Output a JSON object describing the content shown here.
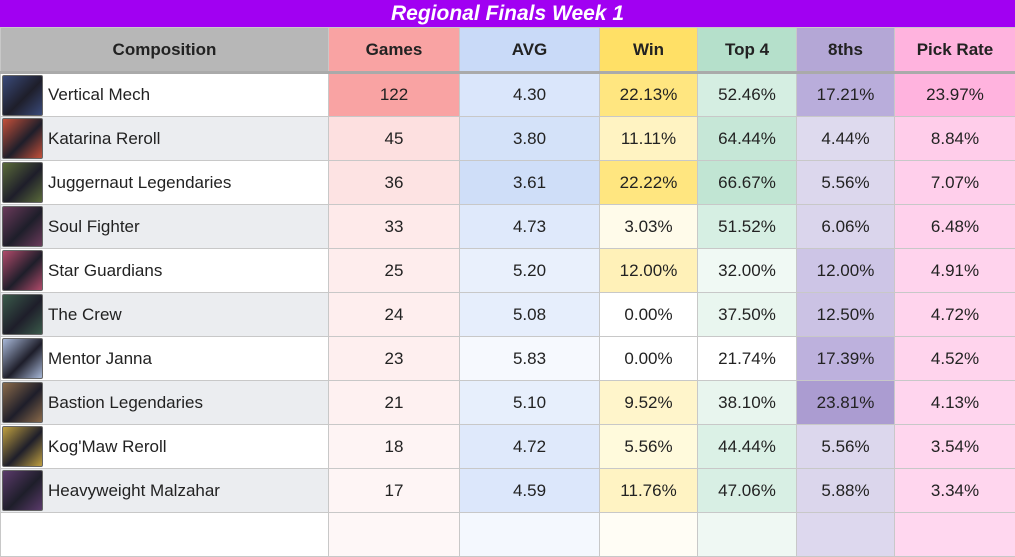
{
  "title": "Regional Finals Week 1",
  "columns": {
    "composition": "Composition",
    "games": "Games",
    "avg": "AVG",
    "win": "Win",
    "top4": "Top 4",
    "eighths": "8ths",
    "pick_rate": "Pick Rate"
  },
  "rows": [
    {
      "name": "Vertical Mech",
      "icon": "champion-portrait-icon",
      "games": "122",
      "avg": "4.30",
      "win": "22.13%",
      "top4": "52.46%",
      "eighths": "17.21%",
      "pick_rate": "23.97%"
    },
    {
      "name": "Katarina Reroll",
      "icon": "champion-portrait-icon",
      "games": "45",
      "avg": "3.80",
      "win": "11.11%",
      "top4": "64.44%",
      "eighths": "4.44%",
      "pick_rate": "8.84%"
    },
    {
      "name": "Juggernaut Legendaries",
      "icon": "champion-portrait-icon",
      "games": "36",
      "avg": "3.61",
      "win": "22.22%",
      "top4": "66.67%",
      "eighths": "5.56%",
      "pick_rate": "7.07%"
    },
    {
      "name": "Soul Fighter",
      "icon": "champion-portrait-icon",
      "games": "33",
      "avg": "4.73",
      "win": "3.03%",
      "top4": "51.52%",
      "eighths": "6.06%",
      "pick_rate": "6.48%"
    },
    {
      "name": "Star Guardians",
      "icon": "champion-portrait-icon",
      "games": "25",
      "avg": "5.20",
      "win": "12.00%",
      "top4": "32.00%",
      "eighths": "12.00%",
      "pick_rate": "4.91%"
    },
    {
      "name": "The Crew",
      "icon": "champion-portrait-icon",
      "games": "24",
      "avg": "5.08",
      "win": "0.00%",
      "top4": "37.50%",
      "eighths": "12.50%",
      "pick_rate": "4.72%"
    },
    {
      "name": "Mentor Janna",
      "icon": "champion-portrait-icon",
      "games": "23",
      "avg": "5.83",
      "win": "0.00%",
      "top4": "21.74%",
      "eighths": "17.39%",
      "pick_rate": "4.52%"
    },
    {
      "name": "Bastion Legendaries",
      "icon": "champion-portrait-icon",
      "games": "21",
      "avg": "5.10",
      "win": "9.52%",
      "top4": "38.10%",
      "eighths": "23.81%",
      "pick_rate": "4.13%"
    },
    {
      "name": "Kog'Maw Reroll",
      "icon": "champion-portrait-icon",
      "games": "18",
      "avg": "4.72",
      "win": "5.56%",
      "top4": "44.44%",
      "eighths": "5.56%",
      "pick_rate": "3.54%"
    },
    {
      "name": "Heavyweight Malzahar",
      "icon": "champion-portrait-icon",
      "games": "17",
      "avg": "4.59",
      "win": "11.76%",
      "top4": "47.06%",
      "eighths": "5.88%",
      "pick_rate": "3.34%"
    }
  ],
  "colors": {
    "title_bg": "#a100f2",
    "games": [
      "#f9a3a3",
      "#fde0e0",
      "#fde3e3",
      "#feeaea",
      "#feeded",
      "#feeeee",
      "#feefef",
      "#fef1f1",
      "#fef4f4",
      "#fef5f5"
    ],
    "avg": [
      "#dae6fb",
      "#d4e2f9",
      "#cfdef8",
      "#dfe9fb",
      "#e9f0fc",
      "#e6eefc",
      "#f6f9fe",
      "#e7effc",
      "#dfe9fb",
      "#dce7fb"
    ],
    "win": [
      "#ffe680",
      "#fff3c2",
      "#ffe680",
      "#fffbea",
      "#fff1b8",
      "#ffffff",
      "#ffffff",
      "#fff5cb",
      "#fffadc",
      "#fff3c3"
    ],
    "top4": [
      "#d5eee2",
      "#c6e7d7",
      "#c1e5d3",
      "#d6efe3",
      "#f0f9f4",
      "#e9f6ef",
      "#ffffff",
      "#e8f5ee",
      "#dbf1e6",
      "#d8efe4"
    ],
    "eighths": [
      "#b9addb",
      "#dedaee",
      "#dcd7ed",
      "#dad5ec",
      "#cdc5e6",
      "#cbc2e4",
      "#bdb1dd",
      "#ab9cd1",
      "#dcd7ed",
      "#dbd6ec"
    ],
    "pick_rate": [
      "#ffb3de",
      "#ffcdea",
      "#ffcfeb",
      "#ffd1ec",
      "#ffd3ed",
      "#ffd4ed",
      "#ffd4ed",
      "#ffd5ee",
      "#ffd6ee",
      "#ffd6ee"
    ],
    "portraits": [
      "#3a4a7a",
      "#c4503a",
      "#5a6a3a",
      "#6a3a5a",
      "#b04a6a",
      "#3a5a4a",
      "#a8b8d8",
      "#8a6a4a",
      "#c0a040",
      "#5a3a6a"
    ]
  }
}
